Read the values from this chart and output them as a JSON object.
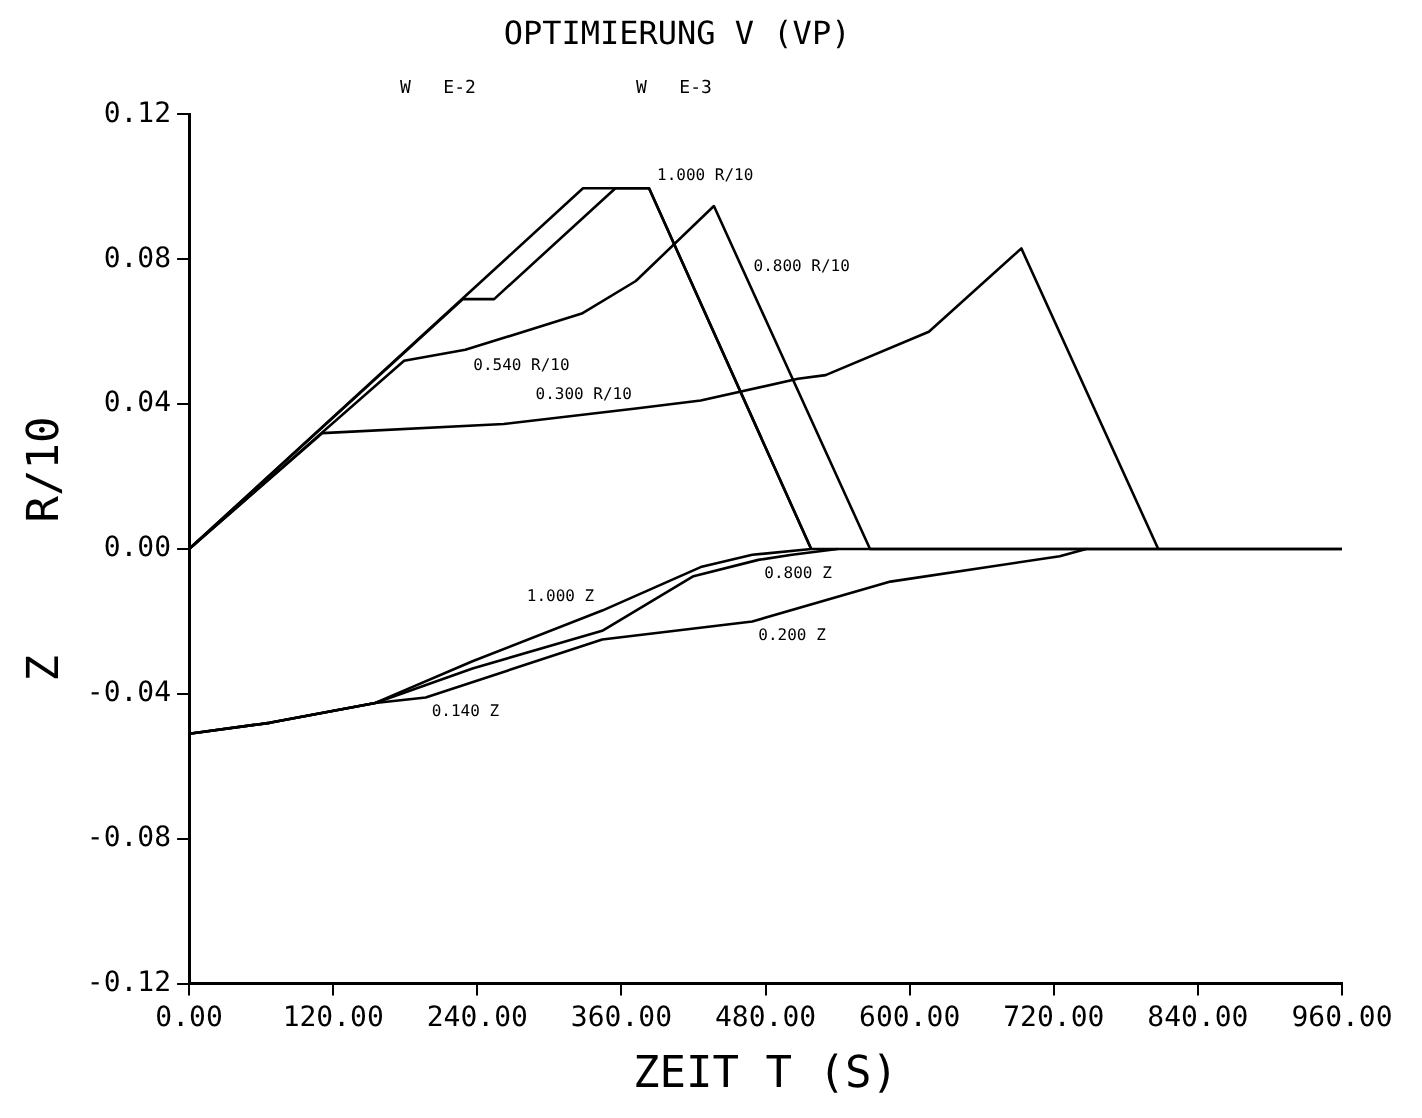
{
  "chart_data": {
    "type": "line",
    "title": "OPTIMIERUNG V (VP)",
    "xlabel": "ZEIT T (S)",
    "ylabel": "Z     R/10",
    "series": [
      {
        "color": "#000000",
        "x": [
          0,
          328,
          383,
          518
        ],
        "values": [
          0,
          0.0996,
          0.0996,
          0
        ]
      },
      {
        "color": "#000000",
        "x": [
          0,
          228,
          254,
          355,
          383,
          518
        ],
        "values": [
          0,
          0.069,
          0.069,
          0.0996,
          0.0996,
          0
        ]
      },
      {
        "color": "#000000",
        "x": [
          0,
          179,
          230,
          327,
          372,
          437,
          567,
          960
        ],
        "values": [
          0,
          0.052,
          0.055,
          0.065,
          0.074,
          0.0947,
          0,
          0
        ]
      },
      {
        "color": "#000000",
        "x": [
          0,
          111,
          262,
          372,
          426,
          507,
          530,
          616,
          693,
          807
        ],
        "values": [
          0,
          0.032,
          0.0345,
          0.0388,
          0.041,
          0.047,
          0.048,
          0.06,
          0.083,
          0
        ]
      },
      {
        "color": "#000000",
        "x": [
          0,
          67,
          155,
          236,
          344,
          426,
          469,
          518,
          960
        ],
        "values": [
          -0.051,
          -0.048,
          -0.0425,
          -0.031,
          -0.017,
          -0.005,
          -0.0016,
          0,
          0
        ]
      },
      {
        "color": "#000000",
        "x": [
          0,
          67,
          155,
          236,
          344,
          420,
          474,
          502,
          540
        ],
        "values": [
          -0.051,
          -0.048,
          -0.0425,
          -0.033,
          -0.0226,
          -0.0075,
          -0.003,
          -0.0016,
          0
        ]
      },
      {
        "color": "#000000",
        "x": [
          0,
          67,
          155,
          197,
          344,
          469,
          584,
          725,
          747
        ],
        "values": [
          -0.051,
          -0.048,
          -0.0425,
          -0.041,
          -0.025,
          -0.02,
          -0.009,
          -0.002,
          0
        ]
      }
    ],
    "xlim": [
      0,
      960
    ],
    "ylim": [
      -0.12,
      0.12
    ],
    "xticks": [
      {
        "value": 0,
        "label": "0.00"
      },
      {
        "value": 120,
        "label": "120.00"
      },
      {
        "value": 240,
        "label": "240.00"
      },
      {
        "value": 360,
        "label": "360.00"
      },
      {
        "value": 480,
        "label": "480.00"
      },
      {
        "value": 600,
        "label": "600.00"
      },
      {
        "value": 720,
        "label": "720.00"
      },
      {
        "value": 840,
        "label": "840.00"
      },
      {
        "value": 960,
        "label": "960.00"
      }
    ],
    "yticks": [
      -0.12,
      -0.08,
      -0.04,
      {
        "value": 0,
        "label": "0.00"
      },
      0.04,
      0.08,
      0.12
    ],
    "annotations": [
      "W   E-2",
      "W   E-3",
      {
        "text": "1.000 R/10",
        "x": 383,
        "y": 0.0996
      },
      {
        "text": "0.800 R/10",
        "x": 460,
        "y": 0.078
      },
      {
        "text": "0.540 R/10",
        "x": 230,
        "y": 0.055
      },
      {
        "text": "0.300 R/10",
        "x": 372,
        "y": 0.0388
      },
      {
        "text": "1.000 Z",
        "x": 344,
        "y": -0.017
      },
      {
        "text": "0.800 Z",
        "x": 474,
        "y": -0.003
      },
      {
        "text": "0.200 Z",
        "x": 469,
        "y": -0.02
      },
      {
        "text": "0.140 Z",
        "x": 197,
        "y": -0.041
      }
    ],
    "grid": false,
    "legend": false,
    "marker": "none",
    "line_style": "solid"
  }
}
